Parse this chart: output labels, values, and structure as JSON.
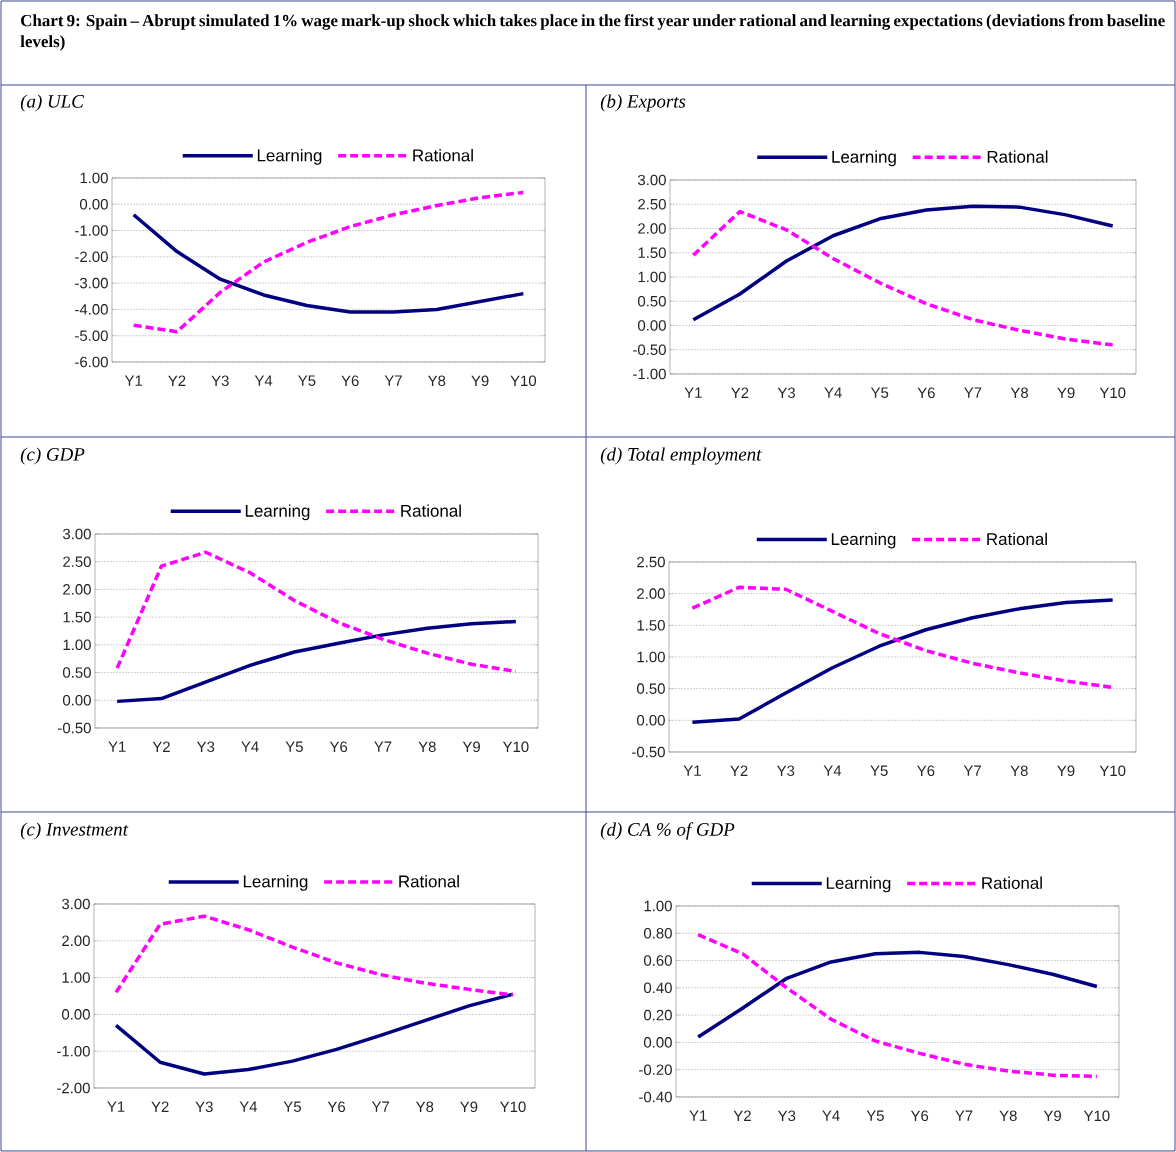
{
  "chart_data": [
    {
      "type": "line",
      "title": "(a) ULC",
      "annotations": [
        "Chart 9: Spain – Abrupt simulated 1% wage mark-up shock which takes place in the first year under rational and learning expectations (deviations from baseline levels)"
      ],
      "categories": [
        "Y1",
        "Y2",
        "Y3",
        "Y4",
        "Y5",
        "Y6",
        "Y7",
        "Y8",
        "Y9",
        "Y10"
      ],
      "series": [
        {
          "name": "Learning",
          "color": "#000080",
          "line_style": "solid",
          "values": [
            -0.4,
            -1.8,
            -2.85,
            -3.45,
            -3.85,
            -4.1,
            -4.1,
            -4.0,
            -3.7,
            -3.4
          ]
        },
        {
          "name": "Rational",
          "color": "#ff00ff",
          "line_style": "dashed",
          "values": [
            -4.6,
            -4.85,
            -3.35,
            -2.2,
            -1.45,
            -0.85,
            -0.4,
            -0.05,
            0.25,
            0.45
          ]
        }
      ],
      "ylim": [
        -6,
        1
      ],
      "yticks": [
        {
          "value": -6,
          "label": "-6.00"
        },
        {
          "value": -5,
          "label": "-5.00"
        },
        {
          "value": -4,
          "label": "-4.00"
        },
        {
          "value": -3,
          "label": "-3.00"
        },
        {
          "value": -2,
          "label": "-2.00"
        },
        {
          "value": -1,
          "label": "-1.00"
        },
        {
          "value": 0,
          "label": "0.00"
        },
        {
          "value": 1,
          "label": "1.00"
        }
      ],
      "grid": "y",
      "legend": "top"
    },
    {
      "type": "line",
      "title": "(b) Exports",
      "categories": [
        "Y1",
        "Y2",
        "Y3",
        "Y4",
        "Y5",
        "Y6",
        "Y7",
        "Y8",
        "Y9",
        "Y10"
      ],
      "series": [
        {
          "name": "Learning",
          "color": "#000080",
          "line_style": "solid",
          "values": [
            0.12,
            0.65,
            1.33,
            1.85,
            2.2,
            2.38,
            2.46,
            2.44,
            2.28,
            2.05
          ]
        },
        {
          "name": "Rational",
          "color": "#ff00ff",
          "line_style": "dashed",
          "values": [
            1.45,
            2.35,
            1.97,
            1.38,
            0.88,
            0.45,
            0.12,
            -0.1,
            -0.28,
            -0.4
          ]
        }
      ],
      "ylim": [
        -1,
        3
      ],
      "yticks": [
        {
          "value": -1,
          "label": "-1.00"
        },
        {
          "value": -0.5,
          "label": "-0.50"
        },
        {
          "value": 0,
          "label": "0.00"
        },
        {
          "value": 0.5,
          "label": "0.50"
        },
        {
          "value": 1,
          "label": "1.00"
        },
        {
          "value": 1.5,
          "label": "1.50"
        },
        {
          "value": 2,
          "label": "2.00"
        },
        {
          "value": 2.5,
          "label": "2.50"
        },
        {
          "value": 3,
          "label": "3.00"
        }
      ],
      "grid": "y",
      "legend": "top"
    },
    {
      "type": "line",
      "title": "(c) GDP",
      "categories": [
        "Y1",
        "Y2",
        "Y3",
        "Y4",
        "Y5",
        "Y6",
        "Y7",
        "Y8",
        "Y9",
        "Y10"
      ],
      "series": [
        {
          "name": "Learning",
          "color": "#000080",
          "line_style": "solid",
          "values": [
            -0.02,
            0.03,
            0.33,
            0.63,
            0.87,
            1.03,
            1.18,
            1.3,
            1.38,
            1.42
          ]
        },
        {
          "name": "Rational",
          "color": "#ff00ff",
          "line_style": "dashed",
          "values": [
            0.58,
            2.42,
            2.67,
            2.3,
            1.8,
            1.4,
            1.1,
            0.85,
            0.65,
            0.52
          ]
        }
      ],
      "ylim": [
        -0.5,
        3
      ],
      "yticks": [
        {
          "value": -0.5,
          "label": "-0.50"
        },
        {
          "value": 0,
          "label": "0.00"
        },
        {
          "value": 0.5,
          "label": "0.50"
        },
        {
          "value": 1,
          "label": "1.00"
        },
        {
          "value": 1.5,
          "label": "1.50"
        },
        {
          "value": 2,
          "label": "2.00"
        },
        {
          "value": 2.5,
          "label": "2.50"
        },
        {
          "value": 3,
          "label": "3.00"
        }
      ],
      "grid": "y",
      "legend": "top"
    },
    {
      "type": "line",
      "title": "(d) Total employment",
      "categories": [
        "Y1",
        "Y2",
        "Y3",
        "Y4",
        "Y5",
        "Y6",
        "Y7",
        "Y8",
        "Y9",
        "Y10"
      ],
      "series": [
        {
          "name": "Learning",
          "color": "#000080",
          "line_style": "solid",
          "values": [
            -0.03,
            0.02,
            0.43,
            0.83,
            1.17,
            1.43,
            1.62,
            1.76,
            1.86,
            1.9
          ]
        },
        {
          "name": "Rational",
          "color": "#ff00ff",
          "line_style": "dashed",
          "values": [
            1.77,
            2.1,
            2.07,
            1.72,
            1.37,
            1.1,
            0.9,
            0.75,
            0.62,
            0.52
          ]
        }
      ],
      "ylim": [
        -0.5,
        2.5
      ],
      "yticks": [
        {
          "value": -0.5,
          "label": "-0.50"
        },
        {
          "value": 0,
          "label": "0.00"
        },
        {
          "value": 0.5,
          "label": "0.50"
        },
        {
          "value": 1,
          "label": "1.00"
        },
        {
          "value": 1.5,
          "label": "1.50"
        },
        {
          "value": 2,
          "label": "2.00"
        },
        {
          "value": 2.5,
          "label": "2.50"
        }
      ],
      "grid": "y",
      "legend": "top"
    },
    {
      "type": "line",
      "title": "(c) Investment",
      "categories": [
        "Y1",
        "Y2",
        "Y3",
        "Y4",
        "Y5",
        "Y6",
        "Y7",
        "Y8",
        "Y9",
        "Y10"
      ],
      "series": [
        {
          "name": "Learning",
          "color": "#000080",
          "line_style": "solid",
          "values": [
            -0.3,
            -1.3,
            -1.62,
            -1.5,
            -1.27,
            -0.95,
            -0.57,
            -0.17,
            0.23,
            0.55
          ]
        },
        {
          "name": "Rational",
          "color": "#ff00ff",
          "line_style": "dashed",
          "values": [
            0.6,
            2.45,
            2.67,
            2.3,
            1.83,
            1.4,
            1.08,
            0.85,
            0.68,
            0.53
          ]
        }
      ],
      "ylim": [
        -2,
        3
      ],
      "yticks": [
        {
          "value": -2,
          "label": "-2.00"
        },
        {
          "value": -1,
          "label": "-1.00"
        },
        {
          "value": 0,
          "label": "0.00"
        },
        {
          "value": 1,
          "label": "1.00"
        },
        {
          "value": 2,
          "label": "2.00"
        },
        {
          "value": 3,
          "label": "3.00"
        }
      ],
      "grid": "y",
      "legend": "top"
    },
    {
      "type": "line",
      "title": "(d) CA % of GDP",
      "categories": [
        "Y1",
        "Y2",
        "Y3",
        "Y4",
        "Y5",
        "Y6",
        "Y7",
        "Y8",
        "Y9",
        "Y10"
      ],
      "series": [
        {
          "name": "Learning",
          "color": "#000080",
          "line_style": "solid",
          "values": [
            0.04,
            0.25,
            0.47,
            0.59,
            0.65,
            0.66,
            0.63,
            0.57,
            0.5,
            0.41
          ]
        },
        {
          "name": "Rational",
          "color": "#ff00ff",
          "line_style": "dashed",
          "values": [
            0.79,
            0.65,
            0.4,
            0.17,
            0.01,
            -0.08,
            -0.16,
            -0.21,
            -0.24,
            -0.25
          ]
        }
      ],
      "ylim": [
        -0.4,
        1
      ],
      "yticks": [
        {
          "value": -0.4,
          "label": "-0.40"
        },
        {
          "value": -0.2,
          "label": "-0.20"
        },
        {
          "value": 0,
          "label": "0.00"
        },
        {
          "value": 0.2,
          "label": "0.20"
        },
        {
          "value": 0.4,
          "label": "0.40"
        },
        {
          "value": 0.6,
          "label": "0.60"
        },
        {
          "value": 0.8,
          "label": "0.80"
        },
        {
          "value": 1,
          "label": "1.00"
        }
      ],
      "grid": "y",
      "legend": "top"
    }
  ]
}
